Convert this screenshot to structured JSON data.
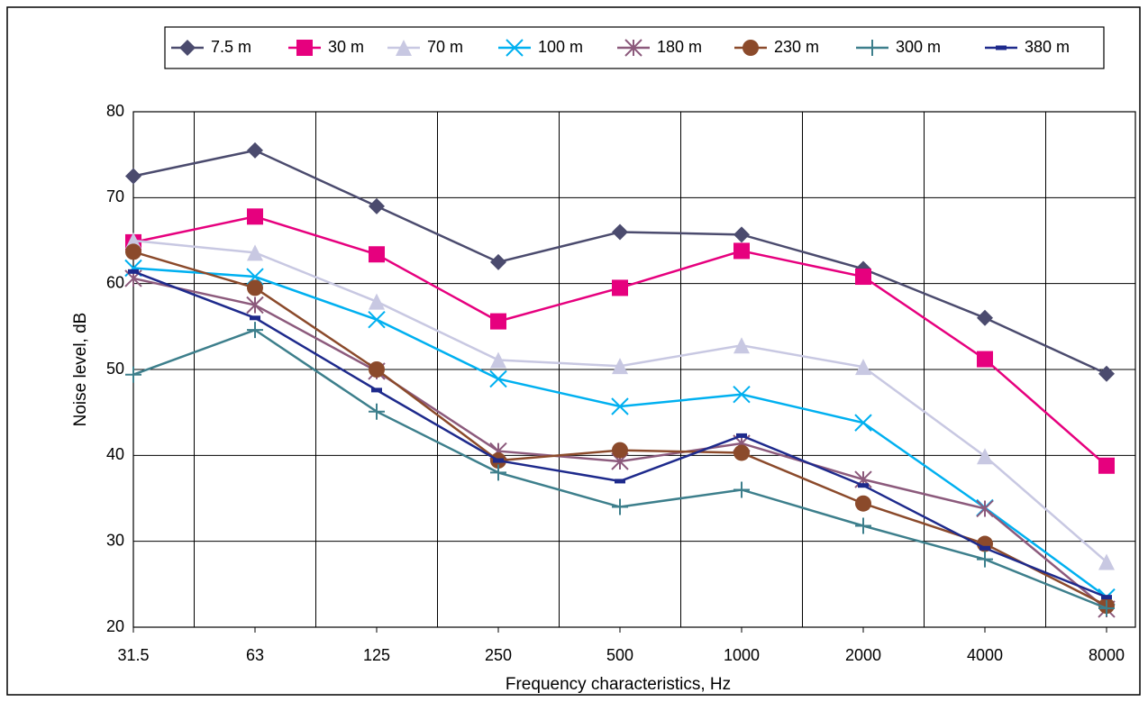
{
  "chart_data": {
    "type": "line",
    "x_label": "Frequency characteristics, Hz",
    "y_label": "Noise level, dB",
    "categories": [
      "31.5",
      "63",
      "125",
      "250",
      "500",
      "1000",
      "2000",
      "4000",
      "8000"
    ],
    "ylim": [
      20,
      80
    ],
    "yticks": [
      20,
      30,
      40,
      50,
      60,
      70,
      80
    ],
    "grid": true,
    "series": [
      {
        "name": "7.5 m",
        "color": "#4b4b6e",
        "marker": "diamond",
        "values": [
          72.5,
          75.5,
          69,
          62.5,
          66,
          65.7,
          61.7,
          56,
          49.5
        ]
      },
      {
        "name": "30 m",
        "color": "#e6007e",
        "marker": "square",
        "values": [
          64.8,
          67.8,
          63.4,
          55.6,
          59.5,
          63.8,
          60.8,
          51.2,
          38.8
        ]
      },
      {
        "name": "70 m",
        "color": "#c8c8e2",
        "marker": "triangle",
        "values": [
          65,
          63.6,
          57.9,
          51.1,
          50.4,
          52.8,
          50.3,
          39.9,
          27.6
        ]
      },
      {
        "name": "100 m",
        "color": "#00b0f0",
        "marker": "x",
        "values": [
          61.8,
          60.8,
          55.8,
          48.9,
          45.7,
          47.1,
          43.8,
          33.9,
          23.5
        ]
      },
      {
        "name": "180 m",
        "color": "#8c5a7c",
        "marker": "star",
        "values": [
          60.6,
          57.5,
          49.8,
          40.5,
          39.3,
          41.4,
          37.2,
          33.8,
          22.1
        ]
      },
      {
        "name": "230 m",
        "color": "#8b4a2b",
        "marker": "circle",
        "values": [
          63.7,
          59.5,
          50,
          39.4,
          40.6,
          40.3,
          34.4,
          29.7,
          22.5
        ]
      },
      {
        "name": "300 m",
        "color": "#3d7f8c",
        "marker": "plus",
        "values": [
          49.4,
          54.6,
          45.1,
          38,
          34,
          36,
          31.8,
          27.9,
          22.2
        ]
      },
      {
        "name": "380 m",
        "color": "#1e2a8c",
        "marker": "dash",
        "values": [
          61.4,
          56,
          47.6,
          39.4,
          37,
          42.3,
          36.5,
          29.2,
          23.5
        ]
      }
    ]
  }
}
